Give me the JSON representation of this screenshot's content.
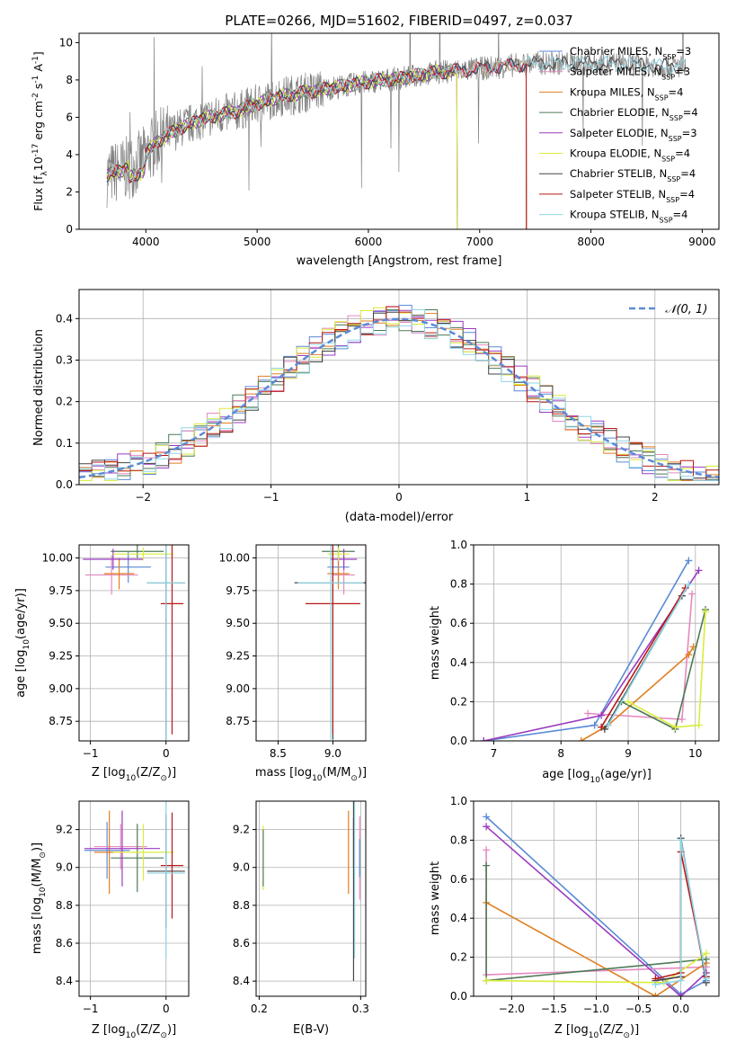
{
  "figure": {
    "title": "PLATE=0266, MJD=51602, FIBERID=0497, z=0.037"
  },
  "colors": {
    "Chabrier MILES": "#5b8ad6",
    "Salpeter MILES": "#e58ac0",
    "Kroupa MILES": "#e07f22",
    "Chabrier ELODIE": "#4d7a55",
    "Salpeter ELODIE": "#9b3bc0",
    "Kroupa ELODIE": "#d9ec3a",
    "Chabrier STELIB": "#444444",
    "Salpeter STELIB": "#b81818",
    "Kroupa STELIB": "#8fd6e6",
    "data": "#808080",
    "gaussian": "#5b8ad6"
  },
  "chart_data": [
    {
      "id": "spectrum",
      "type": "line",
      "xlabel": "wavelength [Angstrom, rest frame]",
      "ylabel": "Flux [f$_\\lambda$10$^{-17}$ erg cm$^{-2}$ s$^{-1}$ A$^{-1}$]",
      "xlim": [
        3400,
        9150
      ],
      "ylim": [
        0,
        10.5
      ],
      "xticks": [
        4000,
        5000,
        6000,
        7000,
        8000,
        9000
      ],
      "yticks": [
        0,
        2,
        4,
        6,
        8,
        10
      ],
      "legend": "top-right",
      "legend_entries": [
        {
          "label": "Chabrier MILES, N",
          "sub": "SSP",
          "tail": "=3",
          "model": "Chabrier MILES"
        },
        {
          "label": "Salpeter MILES, N",
          "sub": "SSP",
          "tail": "=3",
          "model": "Salpeter MILES"
        },
        {
          "label": "Kroupa MILES, N",
          "sub": "SSP",
          "tail": "=4",
          "model": "Kroupa MILES"
        },
        {
          "label": "Chabrier ELODIE, N",
          "sub": "SSP",
          "tail": "=4",
          "model": "Chabrier ELODIE"
        },
        {
          "label": "Salpeter ELODIE, N",
          "sub": "SSP",
          "tail": "=3",
          "model": "Salpeter ELODIE"
        },
        {
          "label": "Kroupa ELODIE, N",
          "sub": "SSP",
          "tail": "=4",
          "model": "Kroupa ELODIE"
        },
        {
          "label": "Chabrier STELIB, N",
          "sub": "SSP",
          "tail": "=4",
          "model": "Chabrier STELIB"
        },
        {
          "label": "Salpeter STELIB, N",
          "sub": "SSP",
          "tail": "=4",
          "model": "Salpeter STELIB"
        },
        {
          "label": "Kroupa STELIB, N",
          "sub": "SSP",
          "tail": "=4",
          "model": "Kroupa STELIB"
        }
      ],
      "continuum": [
        [
          3650,
          2.9
        ],
        [
          3800,
          3.2
        ],
        [
          3950,
          3.6
        ],
        [
          4100,
          4.7
        ],
        [
          4300,
          5.4
        ],
        [
          4500,
          5.9
        ],
        [
          4800,
          6.3
        ],
        [
          5000,
          6.7
        ],
        [
          5200,
          7.1
        ],
        [
          5500,
          7.4
        ],
        [
          5800,
          7.7
        ],
        [
          6000,
          7.9
        ],
        [
          6300,
          8.1
        ],
        [
          6600,
          8.4
        ],
        [
          7000,
          8.6
        ],
        [
          7500,
          8.9
        ],
        [
          8000,
          8.9
        ],
        [
          8500,
          8.8
        ],
        [
          8850,
          8.7
        ]
      ],
      "model_ends": {
        "Kroupa ELODIE": 6800,
        "Kroupa MILES": 7420,
        "Salpeter MILES": 7420,
        "Chabrier MILES": 7420,
        "Salpeter ELODIE": 6800,
        "Chabrier ELODIE": 6800,
        "Salpeter STELIB": 7420
      }
    },
    {
      "id": "residuals",
      "type": "histogram",
      "xlabel": "(data-model)/error",
      "ylabel": "Normed distribution",
      "xlim": [
        -2.5,
        2.5
      ],
      "ylim": [
        0,
        0.47
      ],
      "xticks": [
        -2,
        -1,
        0,
        1,
        2
      ],
      "yticks": [
        0.0,
        0.1,
        0.2,
        0.3,
        0.4
      ],
      "legend": "top-right",
      "legend_label": "N(0,1)",
      "bin_width": 0.1,
      "bins_from": -2.5
    },
    {
      "id": "age_vs_Z",
      "type": "errorbar",
      "xlabel": "Z [log$_{10}$(Z/Z$_\\odot$)]",
      "ylabel": "age  [log$_{10}$(age/yr)]",
      "xlim": [
        -1.15,
        0.3
      ],
      "ylim": [
        8.6,
        10.1
      ],
      "xticks": [
        -1,
        0
      ],
      "yticks": [
        8.75,
        9.0,
        9.25,
        9.5,
        9.75,
        10.0
      ],
      "points": [
        {
          "model": "Chabrier MILES",
          "x": -0.5,
          "xerr": 0.3,
          "y": 9.93,
          "yerr": 0.12
        },
        {
          "model": "Salpeter MILES",
          "x": -0.72,
          "xerr": 0.35,
          "y": 9.87,
          "yerr": 0.15
        },
        {
          "model": "Kroupa MILES",
          "x": -0.62,
          "xerr": 0.2,
          "y": 9.88,
          "yerr": 0.12
        },
        {
          "model": "Chabrier ELODIE",
          "x": -0.38,
          "xerr": 0.35,
          "y": 10.05,
          "yerr": 0.05
        },
        {
          "model": "Salpeter ELODIE",
          "x": -0.7,
          "xerr": 0.4,
          "y": 9.99,
          "yerr": 0.08
        },
        {
          "model": "Kroupa ELODIE",
          "x": -0.3,
          "xerr": 0.4,
          "y": 10.03,
          "yerr": 0.05
        },
        {
          "model": "Chabrier STELIB",
          "x": 0.0,
          "xerr": 0.25,
          "y": 9.81,
          "yerr": 1.2
        },
        {
          "model": "Salpeter STELIB",
          "x": 0.08,
          "xerr": 0.15,
          "y": 9.65,
          "yerr": 1.0
        },
        {
          "model": "Kroupa STELIB",
          "x": 0.0,
          "xerr": 0.25,
          "y": 9.81,
          "yerr": 1.2
        }
      ]
    },
    {
      "id": "age_vs_mass",
      "type": "errorbar",
      "xlabel": "mass [log$_{10}$(M/M$_\\odot$)]",
      "xlim": [
        8.3,
        9.3
      ],
      "ylim": [
        8.6,
        10.1
      ],
      "xticks": [
        8.5,
        9.0
      ],
      "yticks": [
        8.75,
        9.0,
        9.25,
        9.5,
        9.75,
        10.0
      ],
      "points": [
        {
          "model": "Chabrier MILES",
          "x": 9.05,
          "xerr": 0.1,
          "y": 9.93,
          "yerr": 0.12
        },
        {
          "model": "Salpeter MILES",
          "x": 9.1,
          "xerr": 0.1,
          "y": 9.87,
          "yerr": 0.15
        },
        {
          "model": "Kroupa MILES",
          "x": 9.05,
          "xerr": 0.1,
          "y": 9.88,
          "yerr": 0.12
        },
        {
          "model": "Chabrier ELODIE",
          "x": 9.05,
          "xerr": 0.15,
          "y": 10.05,
          "yerr": 0.05
        },
        {
          "model": "Salpeter ELODIE",
          "x": 9.1,
          "xerr": 0.12,
          "y": 9.99,
          "yerr": 0.08
        },
        {
          "model": "Kroupa ELODIE",
          "x": 9.05,
          "xerr": 0.1,
          "y": 10.03,
          "yerr": 0.05
        },
        {
          "model": "Chabrier STELIB",
          "x": 9.0,
          "xerr": 0.35,
          "y": 9.81,
          "yerr": 1.2
        },
        {
          "model": "Salpeter STELIB",
          "x": 9.0,
          "xerr": 0.25,
          "y": 9.65,
          "yerr": 1.0
        },
        {
          "model": "Kroupa STELIB",
          "x": 8.98,
          "xerr": 0.3,
          "y": 9.81,
          "yerr": 1.2
        }
      ]
    },
    {
      "id": "weight_vs_age",
      "type": "line",
      "xlabel": "age  [log$_{10}$(age/yr)]",
      "ylabel": "mass weight",
      "xlim": [
        6.7,
        10.35
      ],
      "ylim": [
        0,
        1.0
      ],
      "xticks": [
        7,
        8,
        9,
        10
      ],
      "yticks": [
        0.0,
        0.2,
        0.4,
        0.6,
        0.8,
        1.0
      ],
      "series": [
        {
          "model": "Chabrier MILES",
          "x": [
            6.85,
            8.5,
            9.9
          ],
          "y": [
            0.0,
            0.08,
            0.92
          ]
        },
        {
          "model": "Salpeter MILES",
          "x": [
            8.4,
            9.8,
            9.95
          ],
          "y": [
            0.14,
            0.11,
            0.75
          ]
        },
        {
          "model": "Kroupa MILES",
          "x": [
            8.3,
            8.7,
            9.9,
            9.97
          ],
          "y": [
            0.0,
            0.08,
            0.44,
            0.48
          ]
        },
        {
          "model": "Chabrier ELODIE",
          "x": [
            8.9,
            9.7,
            10.15
          ],
          "y": [
            0.2,
            0.06,
            0.67
          ]
        },
        {
          "model": "Salpeter ELODIE",
          "x": [
            6.85,
            8.6,
            10.05
          ],
          "y": [
            0.0,
            0.13,
            0.87
          ]
        },
        {
          "model": "Kroupa ELODIE",
          "x": [
            9.0,
            9.7,
            10.05,
            10.15
          ],
          "y": [
            0.2,
            0.07,
            0.08,
            0.66
          ]
        },
        {
          "model": "Chabrier STELIB",
          "x": [
            8.65,
            9.8
          ],
          "y": [
            0.06,
            0.74
          ]
        },
        {
          "model": "Salpeter STELIB",
          "x": [
            8.6,
            9.85
          ],
          "y": [
            0.07,
            0.78
          ]
        },
        {
          "model": "Kroupa STELIB",
          "x": [
            8.7,
            9.9
          ],
          "y": [
            0.08,
            0.8
          ]
        }
      ]
    },
    {
      "id": "mass_vs_Z",
      "type": "errorbar",
      "xlabel": "Z [log$_{10}$(Z/Z$_\\odot$)]",
      "ylabel": "mass [log$_{10}$(M/M$_\\odot$)]",
      "xlim": [
        -1.15,
        0.3
      ],
      "ylim": [
        8.32,
        9.35
      ],
      "xticks": [
        -1,
        0
      ],
      "yticks": [
        8.4,
        8.6,
        8.8,
        9.0,
        9.2
      ],
      "points": [
        {
          "model": "Chabrier MILES",
          "x": -0.78,
          "xerr": 0.3,
          "y": 9.09,
          "yerr": 0.15
        },
        {
          "model": "Salpeter MILES",
          "x": -0.6,
          "xerr": 0.35,
          "y": 9.11,
          "yerr": 0.12
        },
        {
          "model": "Kroupa MILES",
          "x": -0.75,
          "xerr": 0.2,
          "y": 9.08,
          "yerr": 0.22
        },
        {
          "model": "Chabrier ELODIE",
          "x": -0.38,
          "xerr": 0.35,
          "y": 9.05,
          "yerr": 0.18
        },
        {
          "model": "Salpeter ELODIE",
          "x": -0.58,
          "xerr": 0.5,
          "y": 9.1,
          "yerr": 0.2
        },
        {
          "model": "Kroupa ELODIE",
          "x": -0.3,
          "xerr": 0.4,
          "y": 9.08,
          "yerr": 0.15
        },
        {
          "model": "Chabrier STELIB",
          "x": 0.0,
          "xerr": 0.25,
          "y": 8.98,
          "yerr": 0.3
        },
        {
          "model": "Salpeter STELIB",
          "x": 0.08,
          "xerr": 0.15,
          "y": 9.01,
          "yerr": 0.28
        },
        {
          "model": "Kroupa STELIB",
          "x": 0.0,
          "xerr": 0.25,
          "y": 8.97,
          "yerr": 0.45
        }
      ]
    },
    {
      "id": "mass_vs_ebv",
      "type": "errorbar",
      "xlabel": "E(B-V)",
      "xlim": [
        0.197,
        0.305
      ],
      "ylim": [
        8.32,
        9.35
      ],
      "xticks": [
        0.2,
        0.3
      ],
      "yticks": [
        8.4,
        8.6,
        8.8,
        9.0,
        9.2
      ],
      "points": [
        {
          "model": "Kroupa ELODIE",
          "x": 0.204,
          "xerr": 0,
          "y": 9.05,
          "yerr": 0.17
        },
        {
          "model": "Chabrier ELODIE",
          "x": 0.204,
          "xerr": 0,
          "y": 9.05,
          "yerr": 0.15
        },
        {
          "model": "Kroupa MILES",
          "x": 0.288,
          "xerr": 0,
          "y": 9.08,
          "yerr": 0.22
        },
        {
          "model": "Salpeter ELODIE",
          "x": 0.293,
          "xerr": 0,
          "y": 9.13,
          "yerr": 0.13
        },
        {
          "model": "Chabrier STELIB",
          "x": 0.293,
          "xerr": 0,
          "y": 8.9,
          "yerr": 0.5
        },
        {
          "model": "Kroupa STELIB",
          "x": 0.294,
          "xerr": 0,
          "y": 8.97,
          "yerr": 0.45
        },
        {
          "model": "Salpeter MILES",
          "x": 0.299,
          "xerr": 0,
          "y": 9.05,
          "yerr": 0.22
        },
        {
          "model": "Chabrier MILES",
          "x": 0.299,
          "xerr": 0,
          "y": 9.05,
          "yerr": 0.1
        }
      ]
    },
    {
      "id": "weight_vs_Z",
      "type": "line",
      "xlabel": "Z [log$_{10}$(Z/Z$_\\odot$)]",
      "ylabel": "mass weight",
      "xlim": [
        -2.45,
        0.45
      ],
      "ylim": [
        0,
        1.0
      ],
      "xticks": [
        -2.0,
        -1.5,
        -1.0,
        -0.5,
        0.0
      ],
      "yticks": [
        0.0,
        0.2,
        0.4,
        0.6,
        0.8,
        1.0
      ],
      "series": [
        {
          "model": "Chabrier MILES",
          "x": [
            -2.3,
            0.0,
            0.3
          ],
          "y": [
            0.92,
            0.01,
            0.08
          ]
        },
        {
          "model": "Salpeter MILES",
          "x": [
            -2.3,
            -2.3,
            0.3
          ],
          "y": [
            0.75,
            0.11,
            0.15
          ]
        },
        {
          "model": "Kroupa MILES",
          "x": [
            -2.3,
            -0.3,
            0.3
          ],
          "y": [
            0.48,
            0.0,
            0.17
          ]
        },
        {
          "model": "Chabrier ELODIE",
          "x": [
            -2.3,
            -2.3,
            0.3
          ],
          "y": [
            0.67,
            0.08,
            0.19
          ]
        },
        {
          "model": "Salpeter ELODIE",
          "x": [
            -2.3,
            0.0,
            0.3
          ],
          "y": [
            0.87,
            0.0,
            0.12
          ]
        },
        {
          "model": "Kroupa ELODIE",
          "x": [
            -2.3,
            -0.2,
            0.3
          ],
          "y": [
            0.08,
            0.07,
            0.22
          ]
        },
        {
          "model": "Chabrier STELIB",
          "x": [
            -0.3,
            0.0,
            0.0,
            0.3
          ],
          "y": [
            0.08,
            0.1,
            0.81,
            0.07
          ]
        },
        {
          "model": "Salpeter STELIB",
          "x": [
            -0.3,
            0.0,
            0.0,
            0.3
          ],
          "y": [
            0.09,
            0.12,
            0.74,
            0.1
          ]
        },
        {
          "model": "Kroupa STELIB",
          "x": [
            -0.3,
            0.0,
            0.0,
            0.3
          ],
          "y": [
            0.06,
            0.08,
            0.8,
            0.09
          ]
        }
      ]
    }
  ]
}
